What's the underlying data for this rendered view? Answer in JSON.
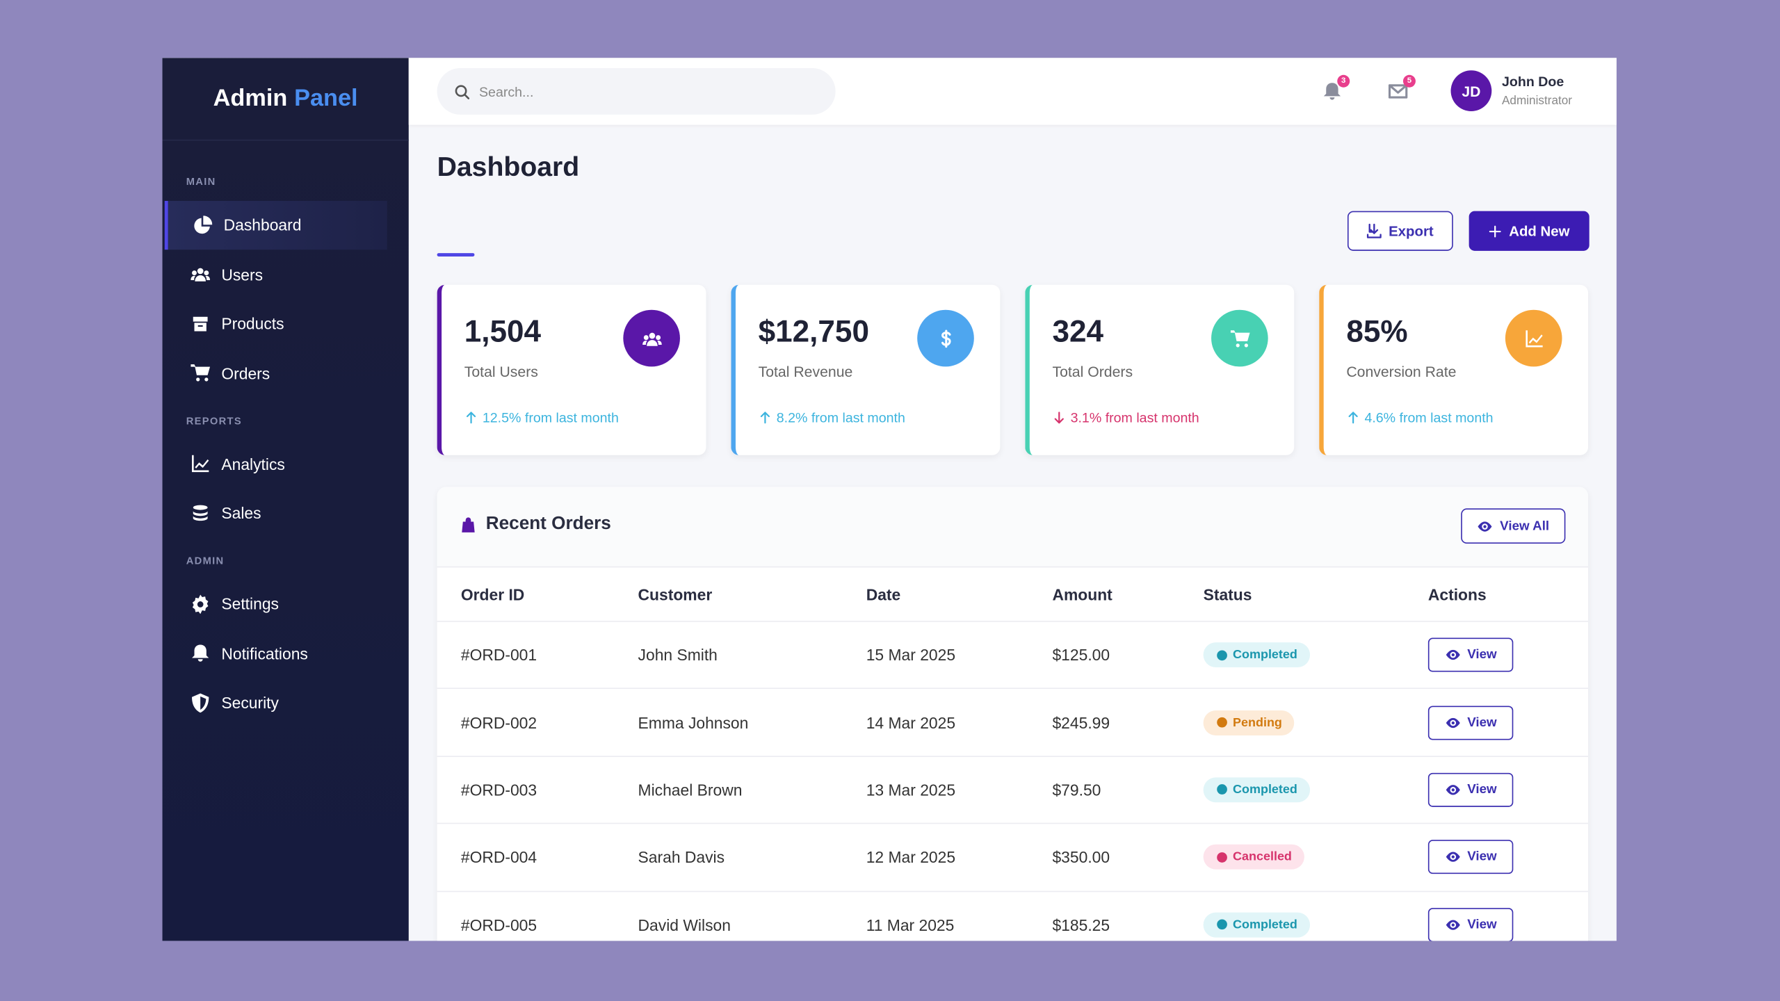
{
  "brand": {
    "first": "Admin",
    "second": "Panel"
  },
  "sidebar": {
    "sections": [
      {
        "title": "MAIN",
        "items": [
          "Dashboard",
          "Users",
          "Products",
          "Orders"
        ]
      },
      {
        "title": "REPORTS",
        "items": [
          "Analytics",
          "Sales"
        ]
      },
      {
        "title": "ADMIN",
        "items": [
          "Settings",
          "Notifications",
          "Security"
        ]
      }
    ]
  },
  "topbar": {
    "search_placeholder": "Search...",
    "notification_count": "3",
    "message_count": "5",
    "user": {
      "initials": "JD",
      "name": "John Doe",
      "role": "Administrator"
    }
  },
  "header": {
    "title": "Dashboard",
    "export": "Export",
    "add_new": "Add New"
  },
  "stats": [
    {
      "value": "1,504",
      "label": "Total Users",
      "change": "12.5% from last month",
      "trend": "up",
      "color": "#5a17a8",
      "change_color": "#3cb4de"
    },
    {
      "value": "$12,750",
      "label": "Total Revenue",
      "change": "8.2% from last month",
      "trend": "up",
      "color": "#4ea6ef",
      "change_color": "#3cb4de"
    },
    {
      "value": "324",
      "label": "Total Orders",
      "change": "3.1% from last month",
      "trend": "down",
      "color": "#48d1b3",
      "change_color": "#d6336c"
    },
    {
      "value": "85%",
      "label": "Conversion Rate",
      "change": "4.6% from last month",
      "trend": "up",
      "color": "#f7a63a",
      "change_color": "#3cb4de"
    }
  ],
  "orders": {
    "title": "Recent Orders",
    "view_all": "View All",
    "columns": [
      "Order ID",
      "Customer",
      "Date",
      "Amount",
      "Status",
      "Actions"
    ],
    "action": "View",
    "rows": [
      {
        "id": "#ORD-001",
        "customer": "John Smith",
        "date": "15 Mar 2025",
        "amount": "$125.00",
        "status": "Completed",
        "status_color": "#1a96ad",
        "status_bg": "#e1f5f8"
      },
      {
        "id": "#ORD-002",
        "customer": "Emma Johnson",
        "date": "14 Mar 2025",
        "amount": "$245.99",
        "status": "Pending",
        "status_color": "#d27a0f",
        "status_bg": "#fdebd8"
      },
      {
        "id": "#ORD-003",
        "customer": "Michael Brown",
        "date": "13 Mar 2025",
        "amount": "$79.50",
        "status": "Completed",
        "status_color": "#1a96ad",
        "status_bg": "#e1f5f8"
      },
      {
        "id": "#ORD-004",
        "customer": "Sarah Davis",
        "date": "12 Mar 2025",
        "amount": "$350.00",
        "status": "Cancelled",
        "status_color": "#d6336c",
        "status_bg": "#fde3eb"
      },
      {
        "id": "#ORD-005",
        "customer": "David Wilson",
        "date": "11 Mar 2025",
        "amount": "$185.25",
        "status": "Completed",
        "status_color": "#1a96ad",
        "status_bg": "#e1f5f8"
      }
    ]
  }
}
